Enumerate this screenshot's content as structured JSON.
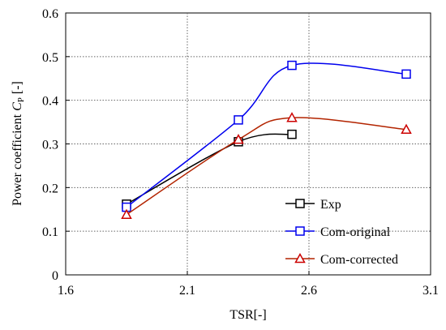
{
  "chart_data": {
    "type": "line",
    "xlabel": "TSR[-]",
    "ylabel_prefix": "Power coefficient ",
    "ylabel_symbol": "C",
    "ylabel_subscript": "P",
    "ylabel_suffix": " [-]",
    "xlim": [
      1.6,
      3.1
    ],
    "ylim": [
      0,
      0.6
    ],
    "xticks": [
      1.6,
      2.1,
      2.6,
      3.1
    ],
    "xtick_labels": [
      "1.6",
      "2.1",
      "2.6",
      "3.1"
    ],
    "yticks": [
      0,
      0.1,
      0.2,
      0.3,
      0.4,
      0.5,
      0.6
    ],
    "ytick_labels": [
      "0",
      "0.1",
      "0.2",
      "0.3",
      "0.4",
      "0.5",
      "0.6"
    ],
    "grid": "dotted",
    "legend_position": "bottom-right",
    "series": [
      {
        "name": "Exp",
        "color": "#000000",
        "marker": "square",
        "x": [
          1.85,
          2.31,
          2.53
        ],
        "y": [
          0.162,
          0.305,
          0.322
        ]
      },
      {
        "name": "Com-original",
        "color": "#0000ee",
        "marker": "square",
        "x": [
          1.85,
          2.31,
          2.53,
          3.0
        ],
        "y": [
          0.155,
          0.355,
          0.48,
          0.46
        ]
      },
      {
        "name": "Com-corrected",
        "color": "#b32400",
        "marker": "triangle",
        "marker_color": "#cc0000",
        "x": [
          1.85,
          2.31,
          2.53,
          3.0
        ],
        "y": [
          0.138,
          0.31,
          0.36,
          0.333
        ]
      }
    ]
  }
}
